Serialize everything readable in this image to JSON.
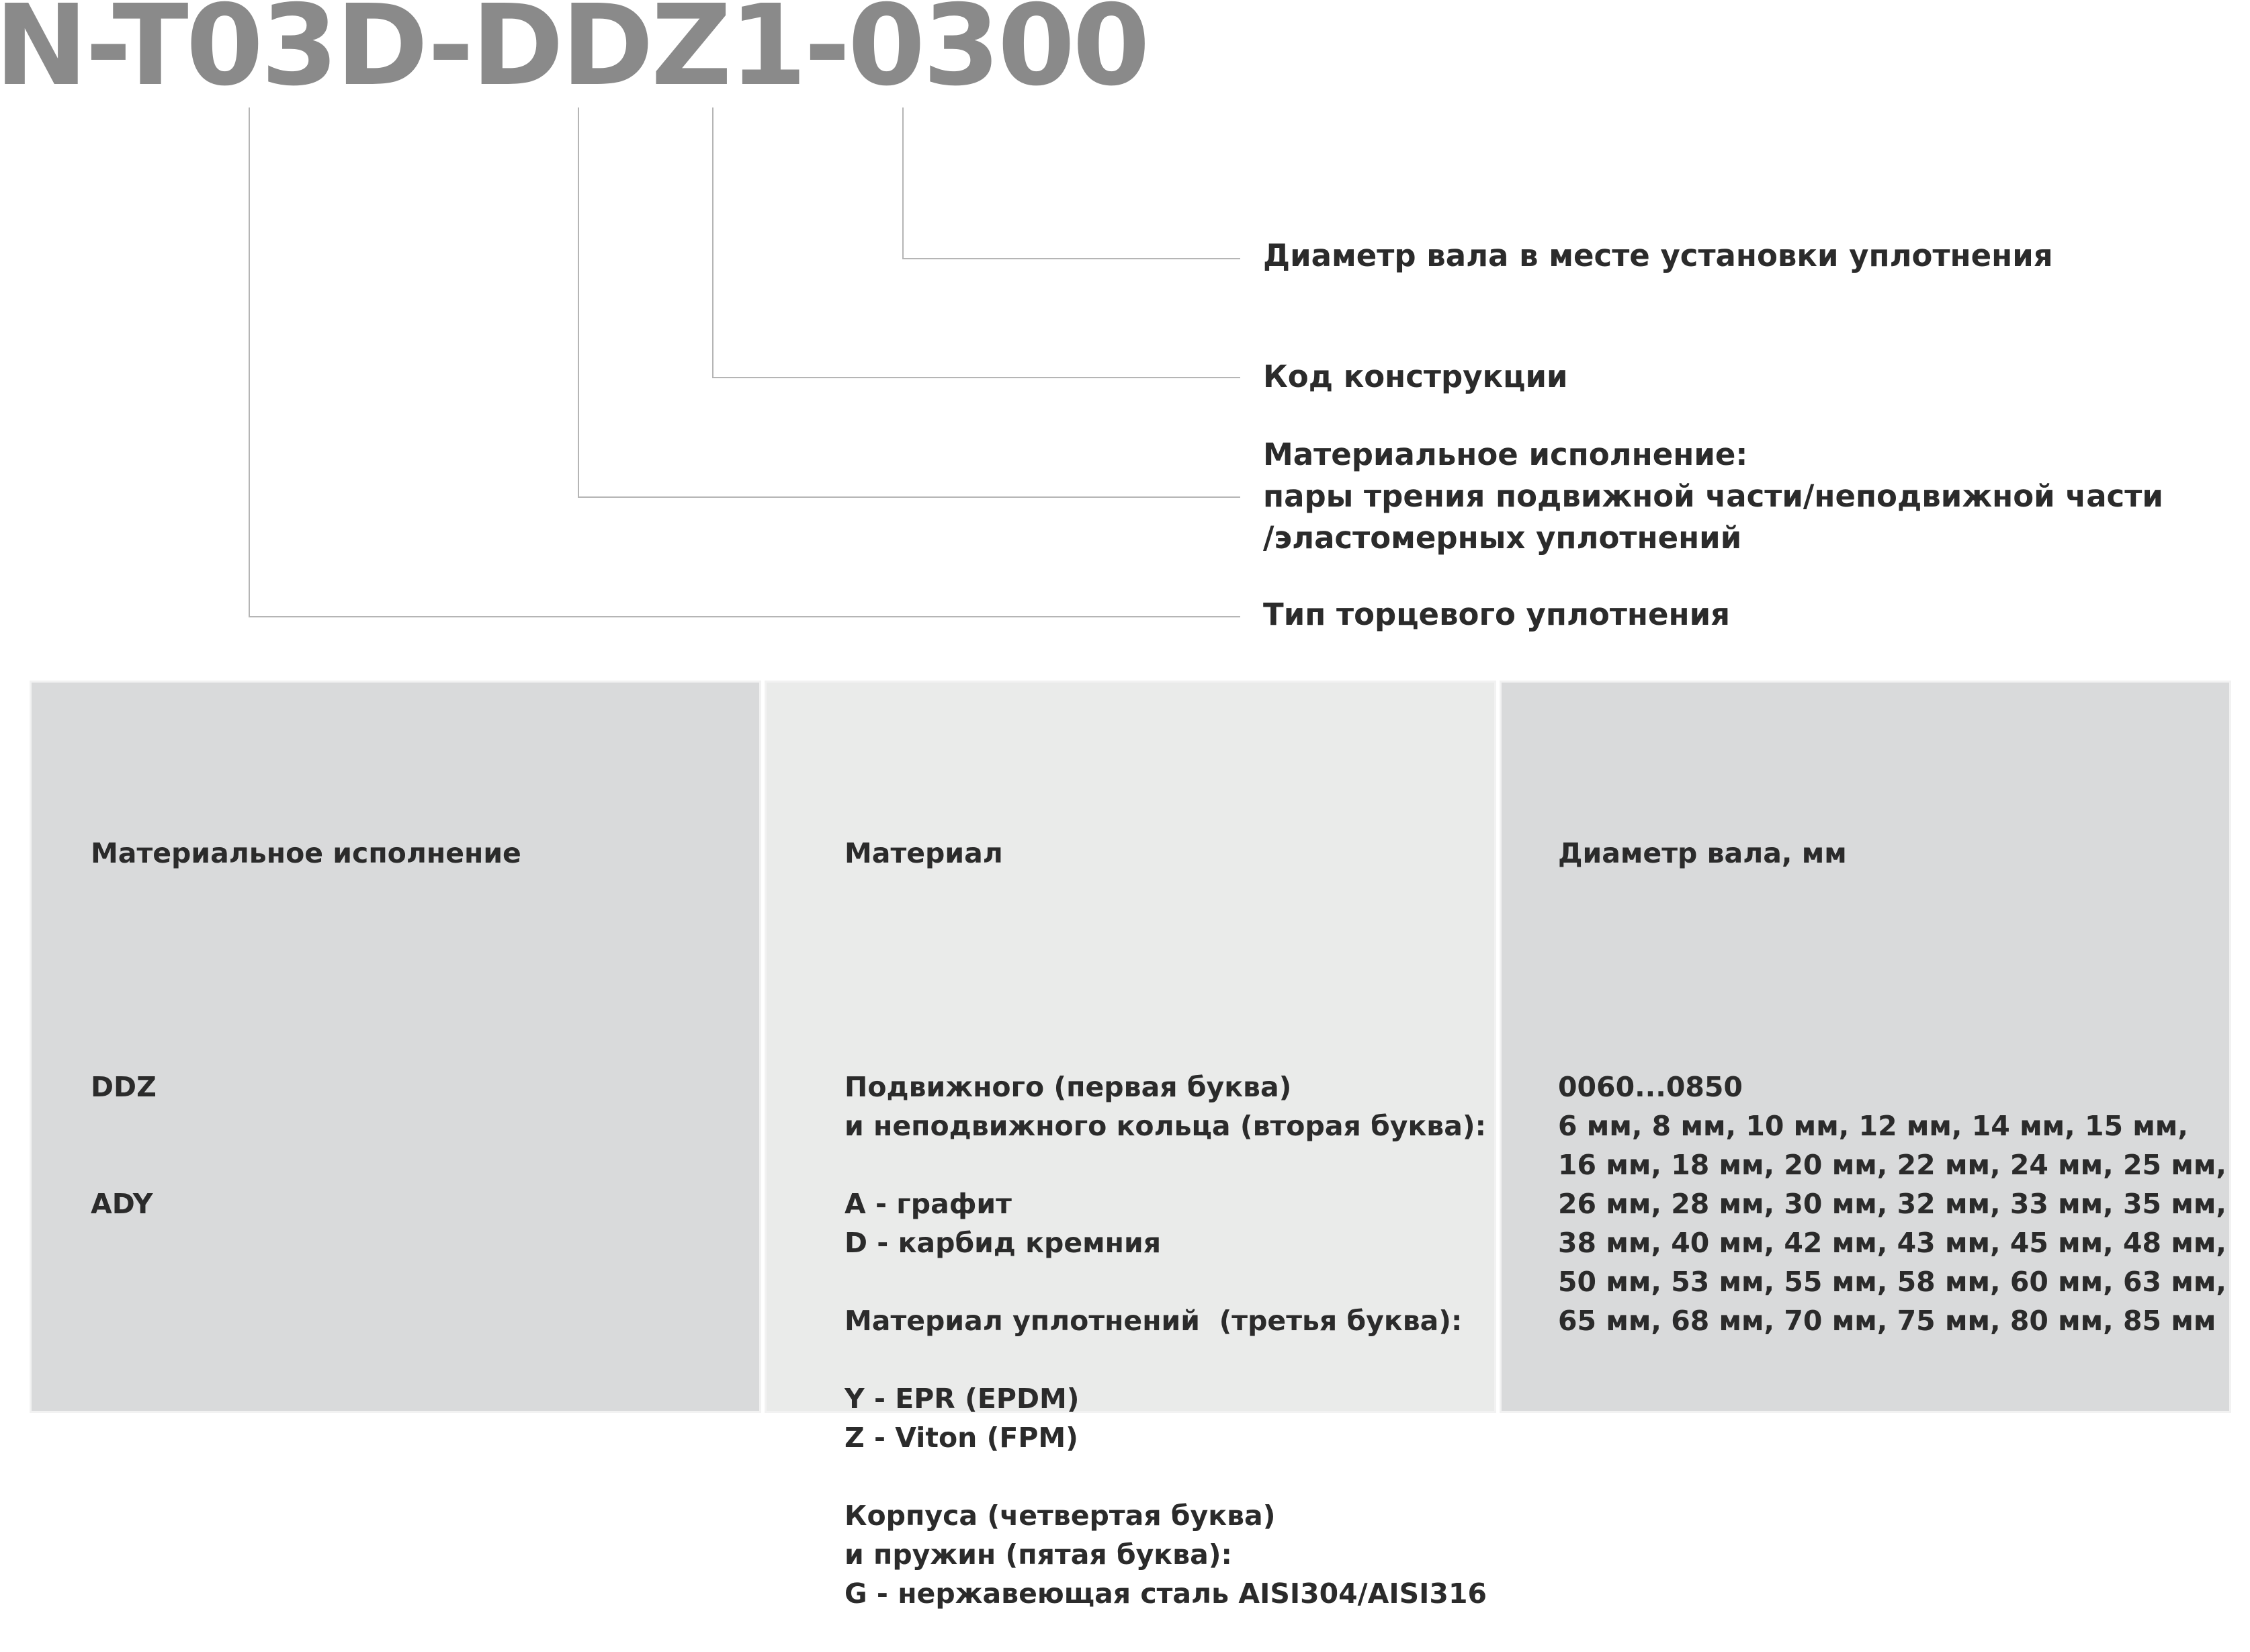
{
  "code": "N-T03D-DDZ1-0300",
  "callouts": {
    "shaft_diameter": "Диаметр вала в месте установки уплотнения",
    "design_code": "Код конструкции",
    "material_lines": [
      "Материальное исполнение:",
      "пары трения подвижной части/неподвижной части",
      "/эластомерных уплотнений"
    ],
    "seal_type": "Тип торцевого уплотнения"
  },
  "panels": {
    "material_version": {
      "header": "Материальное исполнение",
      "items": [
        "DDZ",
        "ADY"
      ],
      "bg": "#d9dadb"
    },
    "material": {
      "header": "Материал",
      "lines": [
        "Подвижного (первая буква)",
        "и неподвижного кольца (вторая буква):",
        "",
        "A - графит",
        "D - карбид кремния",
        "",
        "Материал уплотнений  (третья буква):",
        "",
        "Y - EPR (EPDM)",
        "Z - Viton (FPM)",
        "",
        "Корпуса (четвертая буква)",
        "и пружин (пятая буква):",
        "G - нержавеющая сталь AISI304/AISI316"
      ],
      "bg": "#eaebea"
    },
    "shaft_diameter": {
      "header": "Диаметр вала, мм",
      "lines": [
        "0060...0850",
        "6 мм, 8 мм, 10 мм, 12 мм, 14 мм, 15 мм,",
        "16 мм, 18 мм, 20 мм, 22 мм, 24 мм, 25 мм,",
        "26 мм, 28 мм, 30 мм, 32 мм, 33 мм, 35 мм,",
        "38 мм, 40 мм, 42 мм, 43 мм, 45 мм, 48 мм,",
        "50 мм, 53 мм, 55 мм, 58 мм, 60 мм, 63 мм,",
        "65 мм, 68 мм, 70 мм, 75 мм, 80 мм, 85 мм"
      ],
      "bg": "#d9dadb"
    }
  }
}
